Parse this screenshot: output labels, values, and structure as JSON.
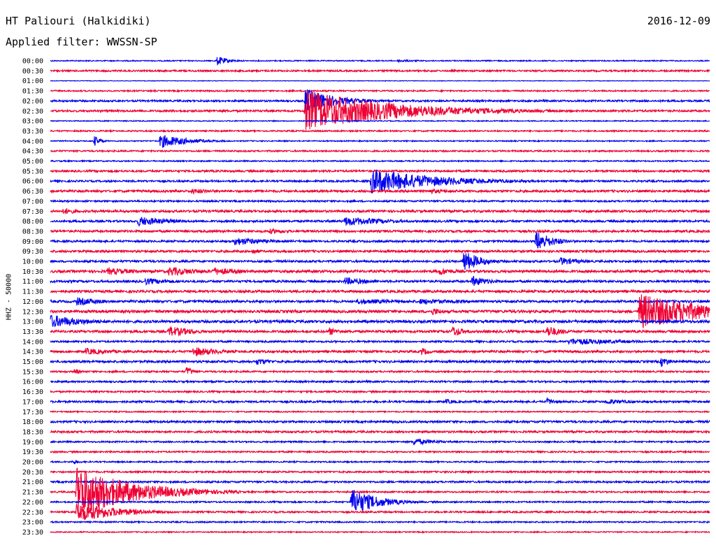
{
  "header": {
    "station": "HT Paliouri (Halkidiki)",
    "date": "2016-12-09",
    "filter": "Applied filter: WWSSN-SP"
  },
  "colors": {
    "blue": "#0000ee",
    "red": "#ee0033",
    "text": "#000000"
  },
  "chart_data": {
    "type": "helicorder",
    "ylabel": "HHZ - 50000",
    "trace_colors": [
      "#0000ee",
      "#ee0033"
    ],
    "rows": [
      "00:00",
      "00:30",
      "01:00",
      "01:30",
      "02:00",
      "02:30",
      "03:00",
      "03:30",
      "04:00",
      "04:30",
      "05:00",
      "05:30",
      "06:00",
      "06:30",
      "07:00",
      "07:30",
      "08:00",
      "08:30",
      "09:00",
      "09:30",
      "10:00",
      "10:30",
      "11:00",
      "11:30",
      "12:00",
      "12:30",
      "13:00",
      "13:30",
      "14:00",
      "14:30",
      "15:00",
      "15:30",
      "16:00",
      "16:30",
      "17:00",
      "17:30",
      "18:00",
      "18:30",
      "19:00",
      "19:30",
      "20:00",
      "20:30",
      "21:00",
      "21:30",
      "22:00",
      "22:30",
      "23:00",
      "23:30"
    ],
    "noise": [
      0.8,
      1.2,
      0.4,
      1.0,
      1.3,
      1.4,
      0.7,
      1.0,
      0.8,
      1.1,
      0.9,
      1.4,
      1.3,
      1.6,
      1.2,
      1.6,
      1.5,
      1.6,
      1.4,
      1.6,
      1.5,
      1.8,
      1.6,
      1.7,
      1.7,
      1.9,
      1.9,
      1.7,
      1.3,
      1.6,
      1.6,
      1.2,
      1.3,
      1.2,
      1.4,
      0.9,
      1.5,
      1.4,
      1.1,
      1.1,
      1.0,
      1.2,
      1.3,
      1.1,
      1.1,
      1.2,
      1.0,
      0.8
    ],
    "events": [
      {
        "row": 0,
        "minute": 7.6,
        "amp": 7,
        "dur": 0.5
      },
      {
        "row": 0,
        "minute": 15.8,
        "amp": 2,
        "dur": 1.2
      },
      {
        "row": 4,
        "minute": 11.6,
        "amp": 18,
        "dur": 1.4
      },
      {
        "row": 5,
        "minute": 11.6,
        "amp": 30,
        "dur": 4.0
      },
      {
        "row": 8,
        "minute": 2.0,
        "amp": 8,
        "dur": 0.3
      },
      {
        "row": 8,
        "minute": 5.0,
        "amp": 10,
        "dur": 1.3
      },
      {
        "row": 12,
        "minute": 14.6,
        "amp": 18,
        "dur": 3.0
      },
      {
        "row": 13,
        "minute": 6.4,
        "amp": 4,
        "dur": 1.5
      },
      {
        "row": 13,
        "minute": 17.2,
        "amp": 4,
        "dur": 1.2
      },
      {
        "row": 15,
        "minute": 0.6,
        "amp": 5,
        "dur": 0.8
      },
      {
        "row": 16,
        "minute": 4.0,
        "amp": 7,
        "dur": 1.6
      },
      {
        "row": 16,
        "minute": 13.4,
        "amp": 7,
        "dur": 2.0
      },
      {
        "row": 17,
        "minute": 10.0,
        "amp": 4,
        "dur": 1.2
      },
      {
        "row": 18,
        "minute": 8.4,
        "amp": 6,
        "dur": 1.6
      },
      {
        "row": 18,
        "minute": 22.1,
        "amp": 15,
        "dur": 0.8
      },
      {
        "row": 19,
        "minute": 9.2,
        "amp": 5,
        "dur": 0.4
      },
      {
        "row": 20,
        "minute": 18.8,
        "amp": 16,
        "dur": 0.8
      },
      {
        "row": 20,
        "minute": 23.2,
        "amp": 6,
        "dur": 1.0
      },
      {
        "row": 21,
        "minute": 2.6,
        "amp": 5,
        "dur": 1.8
      },
      {
        "row": 21,
        "minute": 5.4,
        "amp": 7,
        "dur": 1.5
      },
      {
        "row": 21,
        "minute": 7.4,
        "amp": 6,
        "dur": 1.5
      },
      {
        "row": 21,
        "minute": 17.7,
        "amp": 6,
        "dur": 0.8
      },
      {
        "row": 22,
        "minute": 4.3,
        "amp": 5,
        "dur": 1.5
      },
      {
        "row": 22,
        "minute": 13.4,
        "amp": 6,
        "dur": 1.2
      },
      {
        "row": 22,
        "minute": 19.2,
        "amp": 8,
        "dur": 0.8
      },
      {
        "row": 24,
        "minute": 1.2,
        "amp": 6,
        "dur": 1.5
      },
      {
        "row": 24,
        "minute": 14.0,
        "amp": 4,
        "dur": 3.0
      },
      {
        "row": 24,
        "minute": 16.8,
        "amp": 4,
        "dur": 3.0
      },
      {
        "row": 25,
        "minute": 26.8,
        "amp": 26,
        "dur": 3.2
      },
      {
        "row": 25,
        "minute": 17.4,
        "amp": 6,
        "dur": 0.5
      },
      {
        "row": 26,
        "minute": 0.0,
        "amp": 10,
        "dur": 1.6
      },
      {
        "row": 27,
        "minute": 5.4,
        "amp": 8,
        "dur": 1.2
      },
      {
        "row": 27,
        "minute": 12.7,
        "amp": 6,
        "dur": 0.5
      },
      {
        "row": 27,
        "minute": 18.3,
        "amp": 8,
        "dur": 0.6
      },
      {
        "row": 27,
        "minute": 22.6,
        "amp": 9,
        "dur": 0.7
      },
      {
        "row": 28,
        "minute": 23.6,
        "amp": 5,
        "dur": 3.0
      },
      {
        "row": 29,
        "minute": 1.6,
        "amp": 5,
        "dur": 1.5
      },
      {
        "row": 29,
        "minute": 6.5,
        "amp": 7,
        "dur": 1.4
      },
      {
        "row": 29,
        "minute": 16.9,
        "amp": 6,
        "dur": 0.4
      },
      {
        "row": 30,
        "minute": 9.4,
        "amp": 5,
        "dur": 0.8
      },
      {
        "row": 30,
        "minute": 27.8,
        "amp": 8,
        "dur": 0.4
      },
      {
        "row": 31,
        "minute": 1.1,
        "amp": 5,
        "dur": 0.3
      },
      {
        "row": 31,
        "minute": 6.2,
        "amp": 8,
        "dur": 0.3
      },
      {
        "row": 34,
        "minute": 18.0,
        "amp": 4,
        "dur": 0.6
      },
      {
        "row": 34,
        "minute": 22.6,
        "amp": 5,
        "dur": 0.5
      },
      {
        "row": 34,
        "minute": 25.3,
        "amp": 4,
        "dur": 1.5
      },
      {
        "row": 38,
        "minute": 16.5,
        "amp": 5,
        "dur": 1.2
      },
      {
        "row": 40,
        "minute": 1.0,
        "amp": 3,
        "dur": 0.5
      },
      {
        "row": 43,
        "minute": 1.2,
        "amp": 38,
        "dur": 2.5
      },
      {
        "row": 44,
        "minute": 13.7,
        "amp": 20,
        "dur": 1.2
      },
      {
        "row": 45,
        "minute": 1.2,
        "amp": 14,
        "dur": 2.0
      }
    ]
  }
}
